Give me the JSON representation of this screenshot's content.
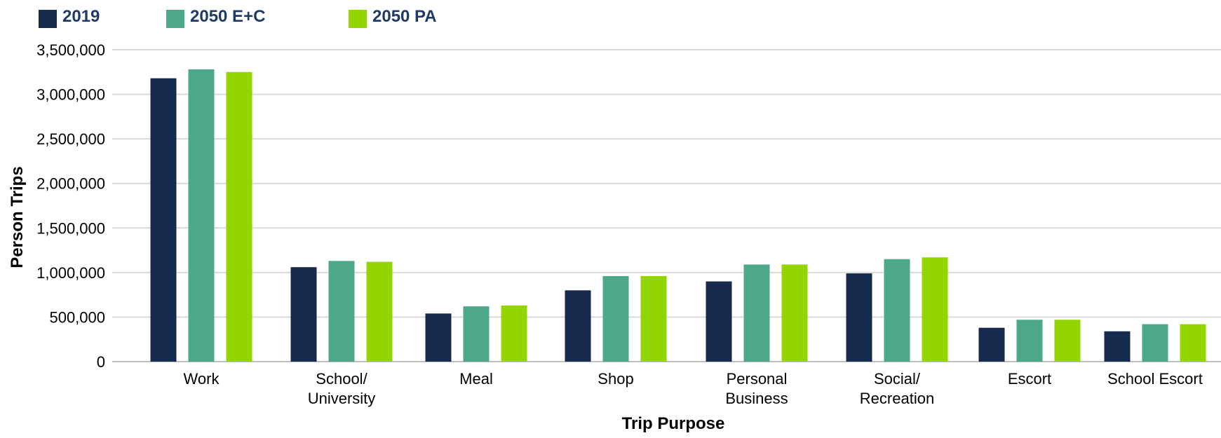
{
  "chart_data": {
    "type": "bar",
    "title": "",
    "xlabel": "Trip Purpose",
    "ylabel": "Person Trips",
    "ylim": [
      0,
      3500000
    ],
    "yticks": [
      0,
      500000,
      1000000,
      1500000,
      2000000,
      2500000,
      3000000,
      3500000
    ],
    "ytick_labels": [
      "0",
      "500,000",
      "1,000,000",
      "1,500,000",
      "2,000,000",
      "2,500,000",
      "3,000,000",
      "3,500,000"
    ],
    "grid": true,
    "legend_position": "top-left",
    "categories": [
      [
        "Work"
      ],
      [
        "School/",
        "University"
      ],
      [
        "Meal"
      ],
      [
        "Shop"
      ],
      [
        "Personal",
        "Business"
      ],
      [
        "Social/",
        "Recreation"
      ],
      [
        "Escort"
      ],
      [
        "School Escort"
      ]
    ],
    "series": [
      {
        "name": "2019",
        "color": "#152a4d",
        "values": [
          3180000,
          1060000,
          540000,
          800000,
          900000,
          990000,
          380000,
          340000
        ]
      },
      {
        "name": "2050 E+C",
        "color": "#4da888",
        "values": [
          3280000,
          1130000,
          620000,
          960000,
          1090000,
          1150000,
          470000,
          420000
        ]
      },
      {
        "name": "2050 PA",
        "color": "#93d500",
        "values": [
          3250000,
          1120000,
          630000,
          960000,
          1090000,
          1170000,
          470000,
          420000
        ]
      }
    ]
  },
  "colors": {
    "gridline": "#d9d9d9",
    "axis": "#bfbfbf",
    "legend_text": "#1f3b63",
    "label_text": "#000000"
  }
}
